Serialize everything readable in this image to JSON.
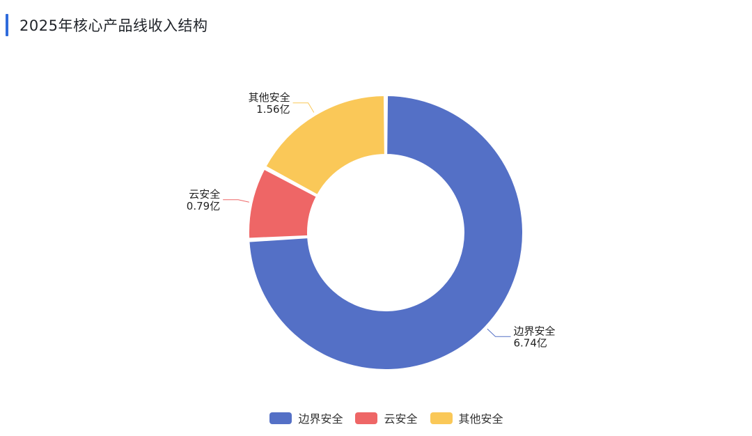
{
  "title": "2025年核心产品线收入结构",
  "chart_data": {
    "type": "pie",
    "title": "2025年核心产品线收入结构",
    "slices": [
      {
        "name": "边界安全",
        "value": 6.74,
        "value_label": "6.74亿",
        "color": "#5470c6"
      },
      {
        "name": "云安全",
        "value": 0.79,
        "value_label": "0.79亿",
        "color": "#ee6666"
      },
      {
        "name": "其他安全",
        "value": 1.56,
        "value_label": "1.56亿",
        "color": "#fac858"
      }
    ],
    "legend_position": "bottom-center"
  }
}
